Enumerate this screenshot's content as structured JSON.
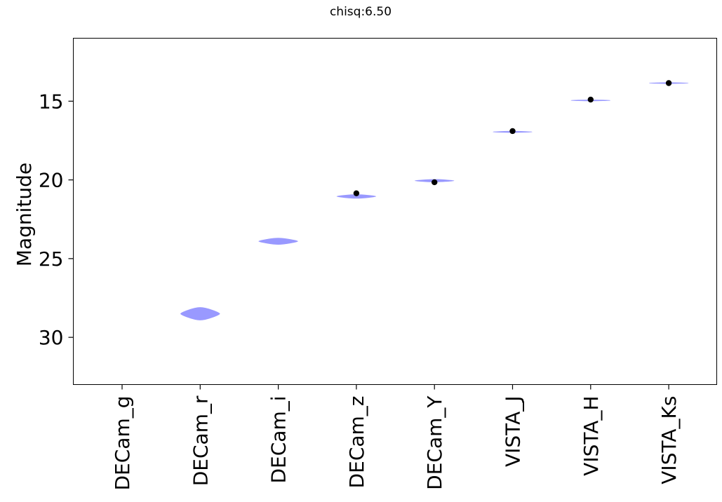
{
  "chart_data": {
    "type": "violin",
    "title": "chisq:6.50",
    "xlabel": "",
    "ylabel": "Magnitude",
    "ylim": [
      33.0,
      11.0
    ],
    "y_inverted": true,
    "yticks": [
      15,
      20,
      25,
      30
    ],
    "categories": [
      "DECam_g",
      "DECam_r",
      "DECam_i",
      "DECam_z",
      "DECam_Y",
      "VISTA_J",
      "VISTA_H",
      "VISTA_Ks"
    ],
    "series": [
      {
        "kind": "violin",
        "color": "#9999ff",
        "values": [
          {
            "category": "DECam_g",
            "center": null,
            "spread": null,
            "width": null
          },
          {
            "category": "DECam_r",
            "center": 28.5,
            "spread": 0.4,
            "width": 0.5
          },
          {
            "category": "DECam_i",
            "center": 23.9,
            "spread": 0.2,
            "width": 0.5
          },
          {
            "category": "DECam_z",
            "center": 21.05,
            "spread": 0.12,
            "width": 0.5
          },
          {
            "category": "DECam_Y",
            "center": 20.05,
            "spread": 0.08,
            "width": 0.5
          },
          {
            "category": "VISTA_J",
            "center": 16.95,
            "spread": 0.04,
            "width": 0.5
          },
          {
            "category": "VISTA_H",
            "center": 14.95,
            "spread": 0.03,
            "width": 0.5
          },
          {
            "category": "VISTA_Ks",
            "center": 13.85,
            "spread": 0.03,
            "width": 0.5
          }
        ]
      },
      {
        "kind": "points",
        "color": "#000000",
        "values": [
          {
            "category": "DECam_z",
            "y": 20.85
          },
          {
            "category": "DECam_Y",
            "y": 20.15
          },
          {
            "category": "VISTA_J",
            "y": 16.9
          },
          {
            "category": "VISTA_H",
            "y": 14.9
          },
          {
            "category": "VISTA_Ks",
            "y": 13.85
          }
        ]
      }
    ]
  }
}
